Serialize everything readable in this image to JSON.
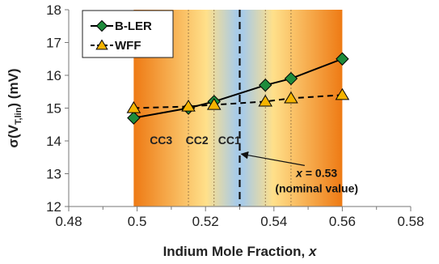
{
  "chart_data": {
    "type": "line",
    "xlabel": "Indium Mole Fraction, x",
    "xlabel_parts": [
      "Indium Mole Fraction, ",
      "x"
    ],
    "ylabel_parts": [
      "σ(V",
      "T,lin",
      ") (mV)"
    ],
    "xlim": [
      0.48,
      0.58
    ],
    "ylim": [
      12,
      18
    ],
    "xticks": [
      0.48,
      0.49,
      0.5,
      0.51,
      0.52,
      0.53,
      0.54,
      0.55,
      0.56,
      0.57,
      0.58
    ],
    "xtick_labels": [
      "0.48",
      "",
      "0.5",
      "",
      "0.52",
      "",
      "0.54",
      "",
      "0.56",
      "",
      "0.58"
    ],
    "yticks": [
      12,
      13,
      14,
      15,
      16,
      17,
      18
    ],
    "ytick_labels": [
      "12",
      "13",
      "14",
      "15",
      "16",
      "17",
      "18"
    ],
    "grid": false,
    "legend_position": "top-left",
    "series": [
      {
        "name": "B-LER",
        "marker": "diamond",
        "line_style": "solid",
        "color": "#000000",
        "marker_color": "#1e8c3c",
        "x": [
          0.499,
          0.515,
          0.5225,
          0.5375,
          0.545,
          0.56
        ],
        "y": [
          14.7,
          15.0,
          15.2,
          15.7,
          15.9,
          16.5
        ]
      },
      {
        "name": "WFF",
        "marker": "triangle",
        "line_style": "dashed",
        "color": "#000000",
        "marker_color": "#f5b400",
        "x": [
          0.499,
          0.515,
          0.5225,
          0.5375,
          0.545,
          0.56
        ],
        "y": [
          15.0,
          15.05,
          15.1,
          15.2,
          15.3,
          15.4
        ]
      }
    ],
    "bands": {
      "x_start": 0.499,
      "x_end": 0.56,
      "center_x": 0.53,
      "center_color": "#a8cbe8",
      "edge_color": "#ee7a14",
      "mid_color": "#ffe08a"
    },
    "band_dividers_x": [
      0.515,
      0.5225,
      0.5375,
      0.545
    ],
    "band_labels": [
      {
        "text": "CC3",
        "x": 0.507,
        "y": 13.9
      },
      {
        "text": "CC2",
        "x": 0.5175,
        "y": 13.9
      },
      {
        "text": "CC1",
        "x": 0.527,
        "y": 13.9
      }
    ],
    "nominal_line_x": 0.53,
    "annotation": {
      "parts": [
        "x",
        " = 0.53"
      ],
      "line2": "(nominal value)",
      "text_x": 0.5525,
      "text_y": 12.9,
      "arrow_from": [
        0.549,
        13.25
      ],
      "arrow_to": [
        0.5305,
        13.6
      ]
    }
  }
}
